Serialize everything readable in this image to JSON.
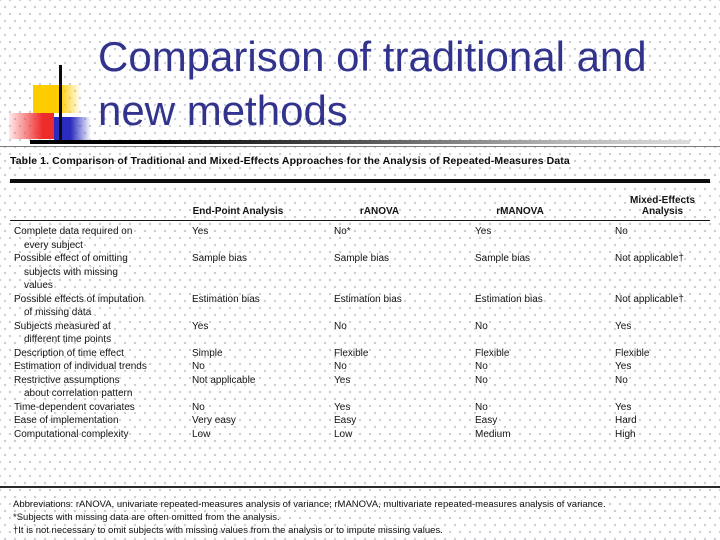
{
  "slide": {
    "title": {
      "line1": "Comparison of traditional and",
      "line2": "new methods",
      "color": "#32338c"
    },
    "decor_colors": {
      "yellow_square": "#ffcc00",
      "red_square": "#ee2b2b",
      "blue_square": "#2b2bbf",
      "line": "#0a0a0a"
    }
  },
  "table": {
    "caption": "Table 1. Comparison of Traditional and Mixed-Effects Approaches for the Analysis of Repeated-Measures Data",
    "columns": [
      "End-Point Analysis",
      "rANOVA",
      "rMANOVA",
      "Mixed-Effects Analysis"
    ],
    "rows": [
      {
        "label": "Complete data required on every subject",
        "values": [
          "Yes",
          "No*",
          "Yes",
          "No"
        ]
      },
      {
        "label": "Possible effect of omitting subjects with missing values",
        "values": [
          "Sample bias",
          "Sample bias",
          "Sample bias",
          "Not applicable†"
        ]
      },
      {
        "label": "Possible effects of imputation of missing data",
        "values": [
          "Estimation bias",
          "Estimation bias",
          "Estimation bias",
          "Not applicable†"
        ]
      },
      {
        "label": "Subjects measured at different time points",
        "values": [
          "Yes",
          "No",
          "No",
          "Yes"
        ]
      },
      {
        "label": "Description of time effect",
        "values": [
          "Simple",
          "Flexible",
          "Flexible",
          "Flexible"
        ]
      },
      {
        "label": "Estimation of individual trends",
        "values": [
          "No",
          "No",
          "No",
          "Yes"
        ]
      },
      {
        "label": "Restrictive assumptions about correlation pattern",
        "values": [
          "Not applicable",
          "Yes",
          "No",
          "No"
        ]
      },
      {
        "label": "Time-dependent covariates",
        "values": [
          "No",
          "Yes",
          "No",
          "Yes"
        ]
      },
      {
        "label": "Ease of implementation",
        "values": [
          "Very easy",
          "Easy",
          "Easy",
          "Hard"
        ]
      },
      {
        "label": "Computational complexity",
        "values": [
          "Low",
          "Low",
          "Medium",
          "High"
        ]
      }
    ],
    "footnotes": [
      "Abbreviations: rANOVA, univariate repeated-measures analysis of variance; rMANOVA, multivariate repeated-measures analysis of variance.",
      "*Subjects with missing data are often omitted from the analysis.",
      "†It is not necessary to omit subjects with missing values from the analysis or to impute missing values."
    ]
  }
}
